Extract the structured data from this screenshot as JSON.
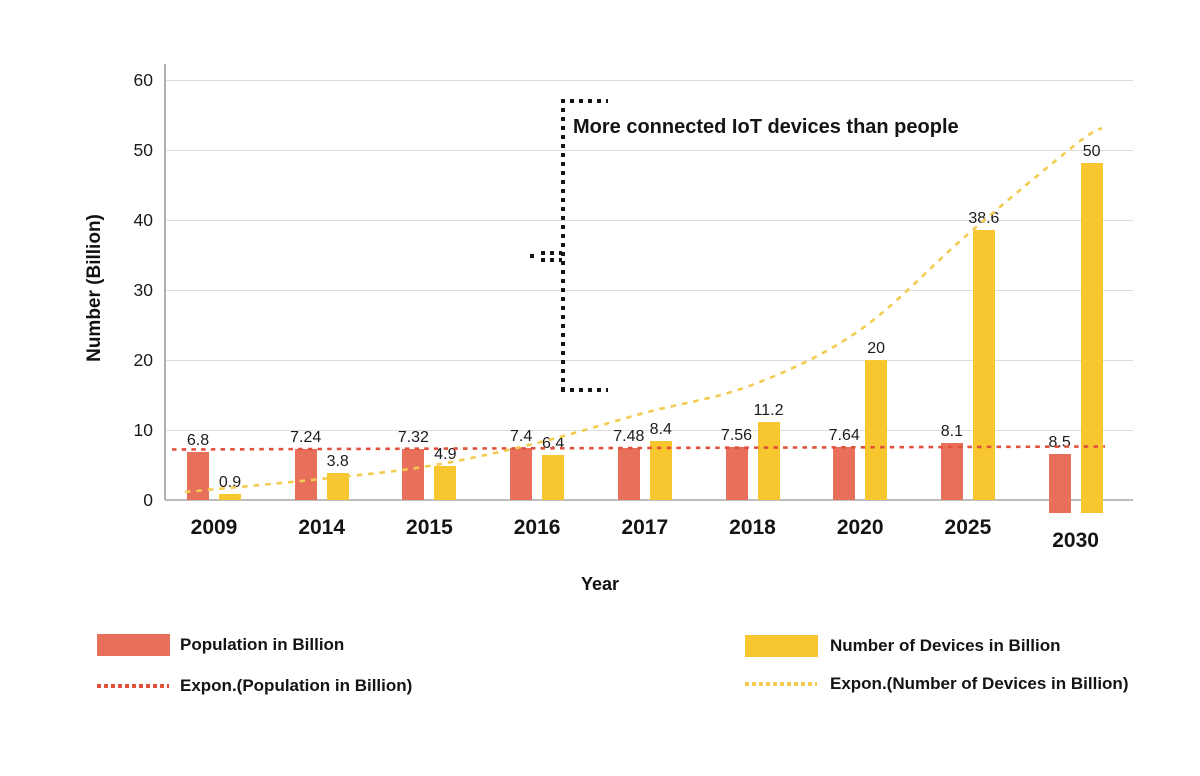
{
  "chart_data": {
    "type": "bar",
    "xlabel": "Year",
    "ylabel": "Number (Billion)",
    "annotation": "More connected IoT devices than people",
    "categories": [
      "2009",
      "2014",
      "2015",
      "2016",
      "2017",
      "2018",
      "2020",
      "2025",
      "2030"
    ],
    "series": [
      {
        "name": "Population in Billion",
        "color": "#E8705B",
        "values": [
          6.8,
          7.24,
          7.32,
          7.4,
          7.48,
          7.56,
          7.64,
          8.1,
          8.5
        ]
      },
      {
        "name": "Number of Devices in Billion",
        "color": "#F8C72F",
        "values": [
          0.9,
          3.8,
          4.9,
          6.4,
          8.4,
          11.2,
          20,
          38.6,
          50
        ]
      }
    ],
    "trendlines": [
      {
        "name": "Expon.(Population in Billion)",
        "color": "#E0503B",
        "style": "dotted"
      },
      {
        "name": "Expon.(Number of Devices in Billion)",
        "color": "#F2CB50",
        "style": "dotted"
      }
    ],
    "y_ticks": [
      0,
      10,
      20,
      30,
      40,
      50,
      60
    ],
    "ylim": [
      0,
      60
    ],
    "grid": true,
    "legend_position": "bottom"
  }
}
